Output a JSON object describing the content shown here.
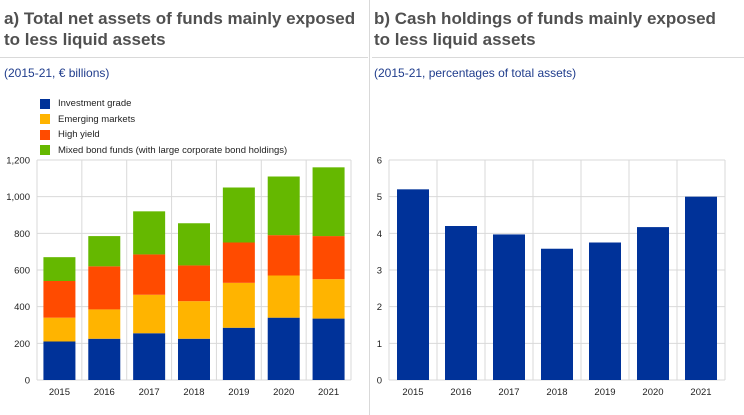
{
  "panels": [
    {
      "title": "a) Total net assets of funds mainly exposed to less liquid assets",
      "subtitle": "(2015-21, € billions)"
    },
    {
      "title": "b) Cash holdings of funds mainly exposed to less liquid assets",
      "subtitle": "(2015-21, percentages of total assets)"
    }
  ],
  "chart_data": [
    {
      "type": "bar",
      "stacked": true,
      "title": "a) Total net assets of funds mainly exposed to less liquid assets",
      "subtitle": "(2015-21, € billions)",
      "categories": [
        "2015",
        "2016",
        "2017",
        "2018",
        "2019",
        "2020",
        "2021"
      ],
      "ylim": [
        0,
        1200
      ],
      "yticks": [
        0,
        200,
        400,
        600,
        800,
        1000,
        1200
      ],
      "ytick_labels": [
        "0",
        "200",
        "400",
        "600",
        "800",
        "1,000",
        "1,200"
      ],
      "grid": true,
      "legend_position": "top-left",
      "series": [
        {
          "name": "Investment grade",
          "color": "#003299",
          "values": [
            210,
            225,
            255,
            225,
            285,
            340,
            335
          ]
        },
        {
          "name": "Emerging markets",
          "color": "#ffb400",
          "values": [
            130,
            160,
            210,
            205,
            245,
            230,
            215
          ]
        },
        {
          "name": "High yield",
          "color": "#ff4b00",
          "values": [
            200,
            235,
            220,
            195,
            220,
            220,
            235
          ]
        },
        {
          "name": "Mixed bond funds (with large corporate bond holdings)",
          "color": "#65b800",
          "values": [
            130,
            165,
            235,
            230,
            300,
            320,
            375
          ]
        }
      ]
    },
    {
      "type": "bar",
      "title": "b) Cash holdings of funds mainly exposed to less liquid assets",
      "subtitle": "(2015-21, percentages of total assets)",
      "categories": [
        "2015",
        "2016",
        "2017",
        "2018",
        "2019",
        "2020",
        "2021"
      ],
      "ylim": [
        0,
        6
      ],
      "yticks": [
        0,
        1,
        2,
        3,
        4,
        5,
        6
      ],
      "ytick_labels": [
        "0",
        "1",
        "2",
        "3",
        "4",
        "5",
        "6"
      ],
      "grid": true,
      "series": [
        {
          "color": "#003299",
          "values": [
            5.2,
            4.2,
            3.97,
            3.58,
            3.75,
            4.17,
            5.0
          ]
        }
      ]
    }
  ]
}
